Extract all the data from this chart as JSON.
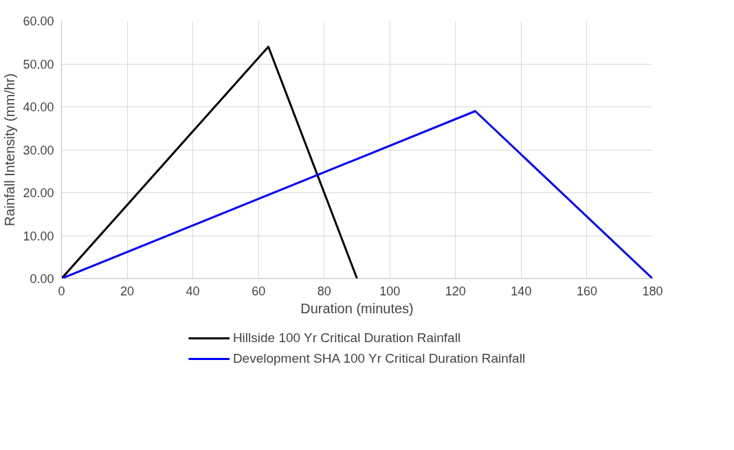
{
  "chart_data": {
    "type": "line",
    "xlabel": "Duration (minutes)",
    "ylabel": "Rainfall Intensity (mm/hr)",
    "xlim": [
      0,
      180
    ],
    "xticks": [
      0,
      20,
      40,
      60,
      80,
      100,
      120,
      140,
      160,
      180
    ],
    "ylim": [
      0,
      60
    ],
    "yticks": [
      {
        "value": 0,
        "label": "0.00"
      },
      {
        "value": 10,
        "label": "10.00"
      },
      {
        "value": 20,
        "label": "20.00"
      },
      {
        "value": 30,
        "label": "30.00"
      },
      {
        "value": 40,
        "label": "40.00"
      },
      {
        "value": 50,
        "label": "50.00"
      },
      {
        "value": 60,
        "label": "60.00"
      }
    ],
    "grid": true,
    "legend": "bottom",
    "marker": "none",
    "line_style": "solid",
    "series": [
      {
        "name": "Hillside 100 Yr Critical Duration Rainfall",
        "color": "#000000",
        "x": [
          0,
          63,
          90
        ],
        "values": [
          0,
          54,
          0
        ]
      },
      {
        "name": "Development SHA 100 Yr Critical Duration Rainfall",
        "color": "#0000ff",
        "x": [
          0,
          126,
          180
        ],
        "values": [
          0,
          39,
          0
        ]
      }
    ]
  }
}
